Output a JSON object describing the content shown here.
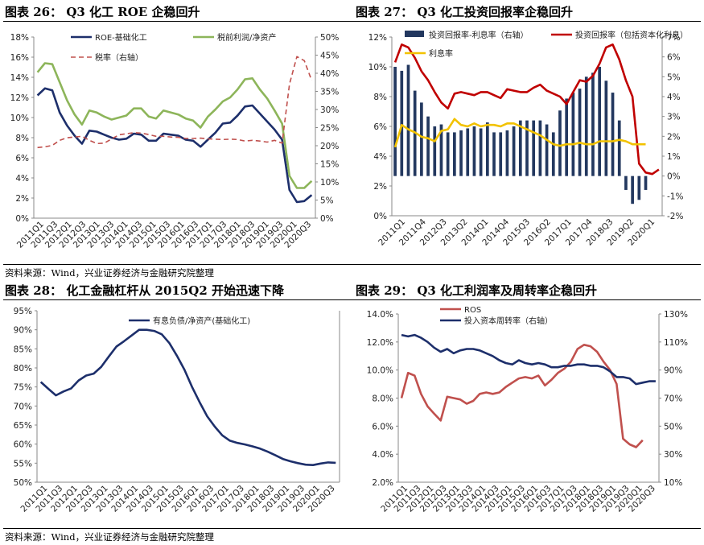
{
  "titles": {
    "c26": "图表 26： Q3 化工 ROE 企稳回升",
    "c27": "图表 27： Q3 化工投资回报率企稳回升",
    "c28": "图表 28： 化工金融杠杆从 2015Q2 开始迅速下降",
    "c29": "图表 29： Q3 化工利润率及周转率企稳回升"
  },
  "source_top": "资料来源：Wind，兴业证券经济与金融研究院整理",
  "source_bottom": "资料来源：Wind，兴业证券经济与金融研究院整理",
  "colors": {
    "navy": "#1d2f6b",
    "green": "#8db55a",
    "red": "#c0504d",
    "darkred": "#c00000",
    "yellow": "#f2c200",
    "bar": "#23385f"
  },
  "chart_data": [
    {
      "id": "c26",
      "type": "line",
      "x_ticks": [
        "2011Q1",
        "2011Q3",
        "2012Q1",
        "2012Q3",
        "2013Q1",
        "2013Q3",
        "2014Q1",
        "2014Q3",
        "2015Q1",
        "2015Q3",
        "2016Q1",
        "2016Q3",
        "2017Q1",
        "2017Q3",
        "2018Q1",
        "2018Q3",
        "2019Q1",
        "2019Q3",
        "2020Q1",
        "2020Q3"
      ],
      "y_left": {
        "min": 0,
        "max": 18,
        "step": 2,
        "unit": "%"
      },
      "y_right": {
        "min": 0,
        "max": 50,
        "step": 5,
        "unit": "%"
      },
      "series": [
        {
          "name": "ROE-基础化工",
          "axis": "left",
          "color": "#1d2f6b",
          "values": [
            12.2,
            12.9,
            12.7,
            10.5,
            9.2,
            8.2,
            7.4,
            8.7,
            8.6,
            8.3,
            8.0,
            7.8,
            7.9,
            8.4,
            8.3,
            7.7,
            7.7,
            8.4,
            8.3,
            8.2,
            7.8,
            7.7,
            7.1,
            7.8,
            8.5,
            9.4,
            9.5,
            10.2,
            11.1,
            11.2,
            10.4,
            9.6,
            8.8,
            7.8,
            2.8,
            1.6,
            1.7,
            2.3
          ]
        },
        {
          "name": "税前利润/净资产",
          "axis": "left",
          "color": "#8db55a",
          "values": [
            14.5,
            15.4,
            15.3,
            13.5,
            11.7,
            10.3,
            9.3,
            10.7,
            10.5,
            10.1,
            9.8,
            10.0,
            10.2,
            10.9,
            10.9,
            10.1,
            9.9,
            10.7,
            10.5,
            10.3,
            9.9,
            9.7,
            9.0,
            10.1,
            10.8,
            11.6,
            12.0,
            12.8,
            13.8,
            13.9,
            12.8,
            11.9,
            10.7,
            9.4,
            4.2,
            3.0,
            3.0,
            3.7
          ]
        },
        {
          "name": "税率（右轴）",
          "axis": "right",
          "color": "#c0504d",
          "dashed": true,
          "values": [
            19.5,
            19.7,
            20.1,
            21.5,
            22.2,
            22.4,
            22.6,
            21.5,
            20.6,
            20.7,
            21.9,
            23.0,
            23.3,
            23.6,
            23.5,
            23.1,
            22.6,
            22.6,
            22.4,
            22.3,
            22.0,
            22.0,
            22.1,
            21.9,
            21.8,
            21.7,
            21.8,
            21.7,
            21.3,
            21.5,
            21.3,
            21.0,
            21.5,
            20.7,
            37.0,
            44.6,
            43.5,
            38.0
          ]
        }
      ]
    },
    {
      "id": "c27",
      "type": "bar+line",
      "x_ticks": [
        "2011Q1",
        "2011Q4",
        "2012Q3",
        "2013Q2",
        "2014Q1",
        "2014Q4",
        "2015Q3",
        "2016Q2",
        "2017Q1",
        "2017Q4",
        "2018Q3",
        "2019Q2",
        "2020Q1"
      ],
      "y_left": {
        "min": 0,
        "max": 12,
        "step": 2,
        "unit": "%"
      },
      "y_right": {
        "min": -2,
        "max": 7,
        "step": 1,
        "unit": "%"
      },
      "series": [
        {
          "name": "投资回报率-利息率（右轴）",
          "axis": "right",
          "kind": "bar",
          "color": "#23385f",
          "values": [
            5.5,
            5.3,
            5.6,
            4.3,
            3.7,
            3.0,
            2.5,
            2.6,
            2.2,
            2.2,
            2.3,
            2.4,
            2.5,
            2.4,
            2.7,
            2.2,
            2.2,
            2.3,
            2.5,
            2.8,
            2.8,
            2.8,
            2.8,
            2.6,
            2.2,
            3.3,
            3.9,
            4.2,
            4.4,
            5.0,
            5.2,
            5.5,
            4.8,
            4.2,
            2.8,
            -0.7,
            -1.4,
            -1.2,
            -0.7
          ]
        },
        {
          "name": "投资回报率（包括资本化利息）",
          "axis": "left",
          "kind": "line",
          "color": "#c00000",
          "values": [
            10.3,
            11.5,
            11.3,
            10.6,
            9.7,
            9.1,
            8.3,
            7.6,
            7.2,
            8.2,
            8.3,
            8.2,
            8.1,
            8.3,
            8.3,
            8.1,
            7.9,
            8.5,
            8.4,
            8.3,
            8.3,
            8.6,
            8.8,
            8.4,
            8.2,
            8.0,
            7.5,
            8.3,
            9.1,
            9.0,
            9.4,
            10.2,
            11.3,
            11.5,
            10.5,
            9.1,
            8.0,
            3.5,
            2.9,
            2.8,
            3.1
          ]
        },
        {
          "name": "利息率",
          "axis": "left",
          "kind": "line",
          "color": "#f2c200",
          "values": [
            4.6,
            6.1,
            5.8,
            5.6,
            5.3,
            5.2,
            5.0,
            5.7,
            5.8,
            6.5,
            6.1,
            6.0,
            6.2,
            6.0,
            6.1,
            6.1,
            6.0,
            6.2,
            6.2,
            6.0,
            5.8,
            5.6,
            5.4,
            5.1,
            4.8,
            4.7,
            4.8,
            4.8,
            4.9,
            4.8,
            4.8,
            5.0,
            5.0,
            5.0,
            5.1,
            5.0,
            4.8,
            4.8,
            4.8
          ]
        }
      ]
    },
    {
      "id": "c28",
      "type": "line",
      "x_ticks": [
        "2011Q1",
        "2011Q3",
        "2012Q1",
        "2012Q3",
        "2013Q1",
        "2013Q3",
        "2014Q1",
        "2014Q3",
        "2015Q1",
        "2015Q3",
        "2016Q1",
        "2016Q3",
        "2017Q1",
        "2017Q3",
        "2018Q1",
        "2018Q3",
        "2019Q1",
        "2019Q3",
        "2020Q1",
        "2020Q3"
      ],
      "y_left": {
        "min": 50,
        "max": 95,
        "step": 5,
        "unit": "%"
      },
      "series": [
        {
          "name": "有息负债/净资产(基础化工)",
          "axis": "left",
          "color": "#1d2f6b",
          "values": [
            76.3,
            74.5,
            72.8,
            73.8,
            74.6,
            76.7,
            78.0,
            78.5,
            80.3,
            83.0,
            85.6,
            87.0,
            88.5,
            90.0,
            90.0,
            89.7,
            88.8,
            86.5,
            83.2,
            79.5,
            75.0,
            71.0,
            67.3,
            64.6,
            62.3,
            60.9,
            60.3,
            59.9,
            59.4,
            58.8,
            58.0,
            57.1,
            56.1,
            55.5,
            55.0,
            54.6,
            54.5,
            54.9,
            55.2,
            55.1
          ]
        }
      ]
    },
    {
      "id": "c29",
      "type": "line",
      "x_ticks": [
        "2011Q1",
        "2011Q3",
        "2012Q1",
        "2012Q3",
        "2013Q1",
        "2013Q3",
        "2014Q1",
        "2014Q3",
        "2015Q1",
        "2015Q3",
        "2016Q1",
        "2016Q3",
        "2017Q1",
        "2017Q3",
        "2018Q1",
        "2018Q3",
        "2019Q1",
        "2019Q3",
        "2020Q1",
        "2020Q3"
      ],
      "y_left": {
        "min": 2,
        "max": 14,
        "step": 2,
        "unit": "%",
        "decimals": 1
      },
      "y_right": {
        "min": 10,
        "max": 130,
        "step": 20,
        "unit": "%"
      },
      "series": [
        {
          "name": "ROS",
          "axis": "left",
          "color": "#c0504d",
          "values": [
            8.0,
            9.8,
            9.6,
            8.3,
            7.4,
            6.9,
            6.4,
            8.1,
            8.0,
            7.9,
            7.6,
            7.8,
            8.3,
            8.4,
            8.3,
            8.4,
            8.8,
            9.1,
            9.4,
            9.5,
            9.4,
            9.6,
            8.9,
            9.3,
            9.8,
            10.1,
            10.6,
            11.5,
            11.8,
            11.7,
            11.3,
            10.6,
            10.0,
            9.0,
            5.1,
            4.7,
            4.5,
            5.0
          ]
        },
        {
          "name": "投入资本周转率（右轴）",
          "axis": "right",
          "color": "#1d2f6b",
          "values": [
            115,
            114,
            115,
            113,
            110,
            106,
            103,
            105,
            102,
            104,
            105,
            105,
            104,
            102,
            100,
            97,
            95,
            94,
            97,
            95,
            94,
            95,
            94,
            92,
            92,
            93,
            93,
            94,
            94,
            93,
            93,
            92,
            89,
            85,
            85,
            84,
            80,
            81,
            82,
            82
          ]
        }
      ]
    }
  ]
}
